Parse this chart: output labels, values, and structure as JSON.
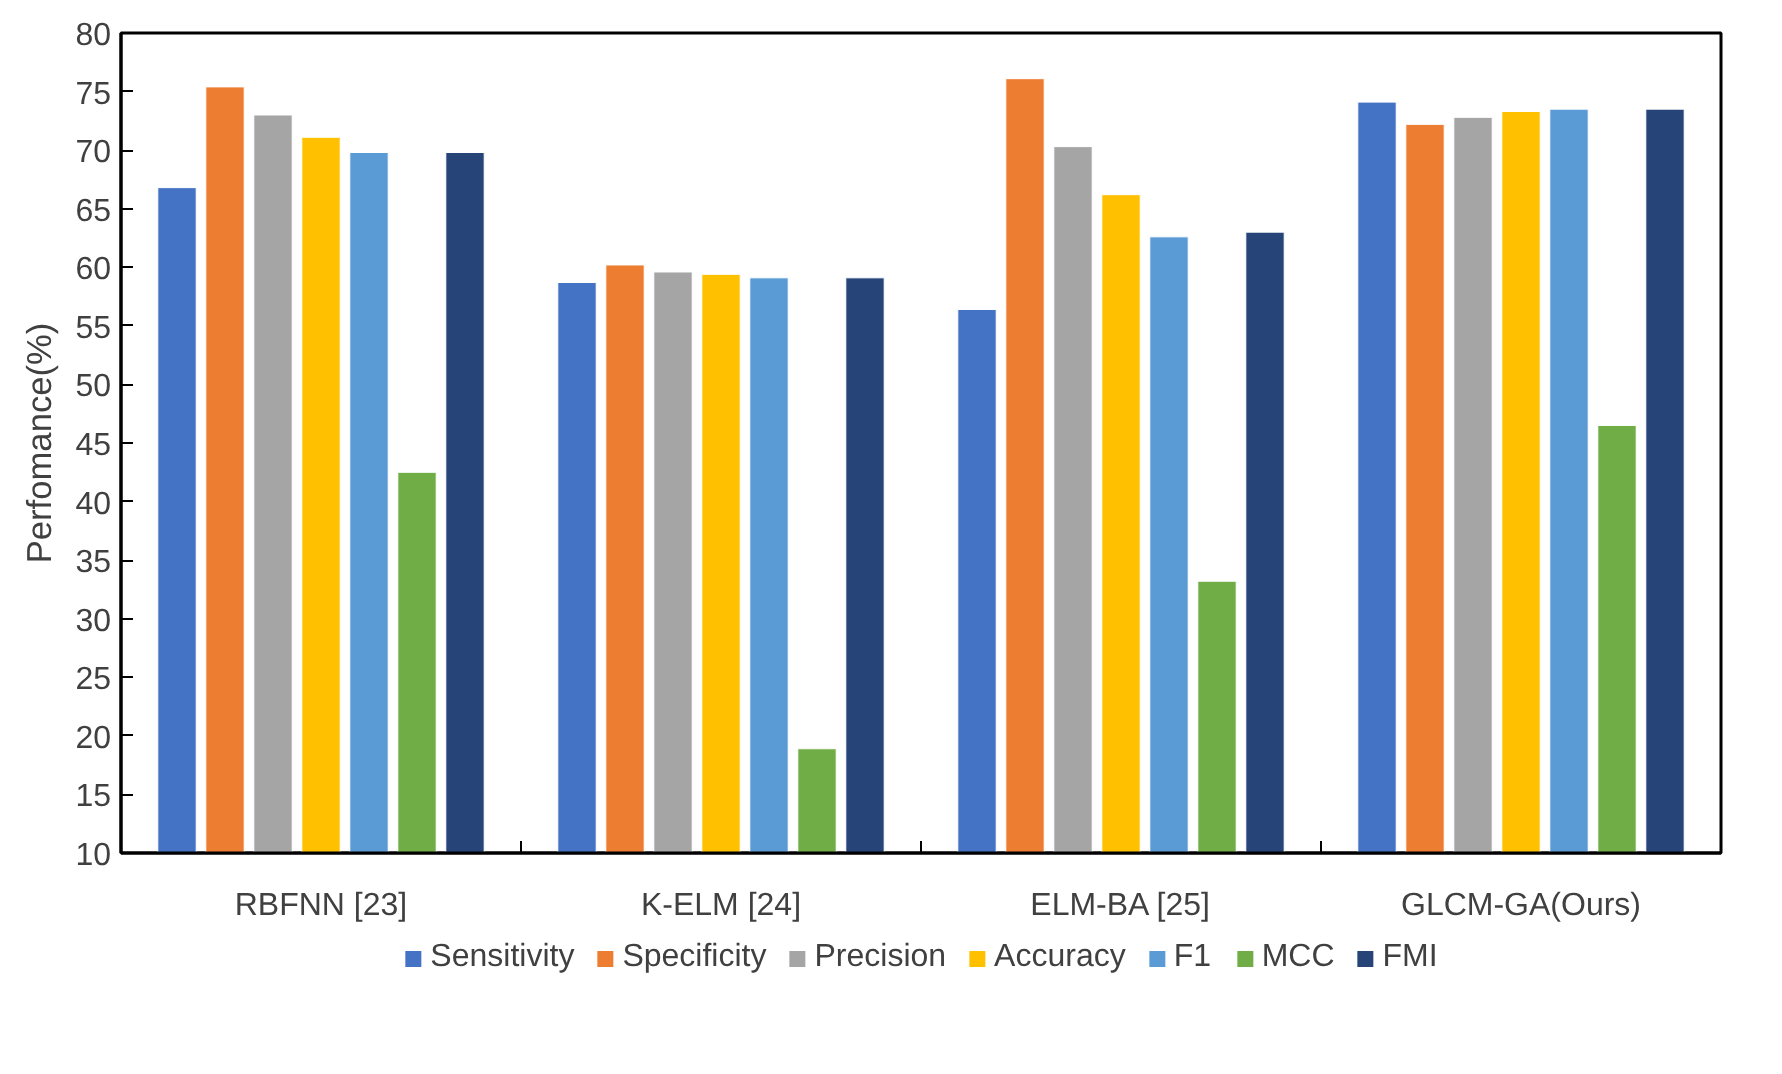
{
  "chart_data": {
    "type": "bar",
    "ylabel": "Perfomance(%)",
    "categories": [
      "RBFNN [23]",
      "K-ELM [24]",
      "ELM-BA [25]",
      "GLCM-GA(Ours)"
    ],
    "series": [
      {
        "name": "Sensitivity",
        "color": "#4472c4",
        "values": [
          66.8,
          58.7,
          56.4,
          74.1
        ]
      },
      {
        "name": "Specificity",
        "color": "#ed7d31",
        "values": [
          75.4,
          60.2,
          76.1,
          72.2
        ]
      },
      {
        "name": "Precision",
        "color": "#a5a5a5",
        "values": [
          73.0,
          59.6,
          70.3,
          72.8
        ]
      },
      {
        "name": "Accuracy",
        "color": "#ffc000",
        "values": [
          71.1,
          59.4,
          66.2,
          73.3
        ]
      },
      {
        "name": "F1",
        "color": "#5b9bd5",
        "values": [
          69.8,
          59.1,
          62.6,
          73.5
        ]
      },
      {
        "name": "MCC",
        "color": "#70ad47",
        "values": [
          42.5,
          18.9,
          33.2,
          46.5
        ]
      },
      {
        "name": "FMI",
        "color": "#264478",
        "values": [
          69.8,
          59.1,
          63.0,
          73.5
        ]
      }
    ],
    "ylim": [
      10,
      80
    ],
    "yticks": [
      10,
      15,
      20,
      25,
      30,
      35,
      40,
      45,
      50,
      55,
      60,
      65,
      70,
      75,
      80
    ],
    "grid": false,
    "legend": "bottom"
  }
}
